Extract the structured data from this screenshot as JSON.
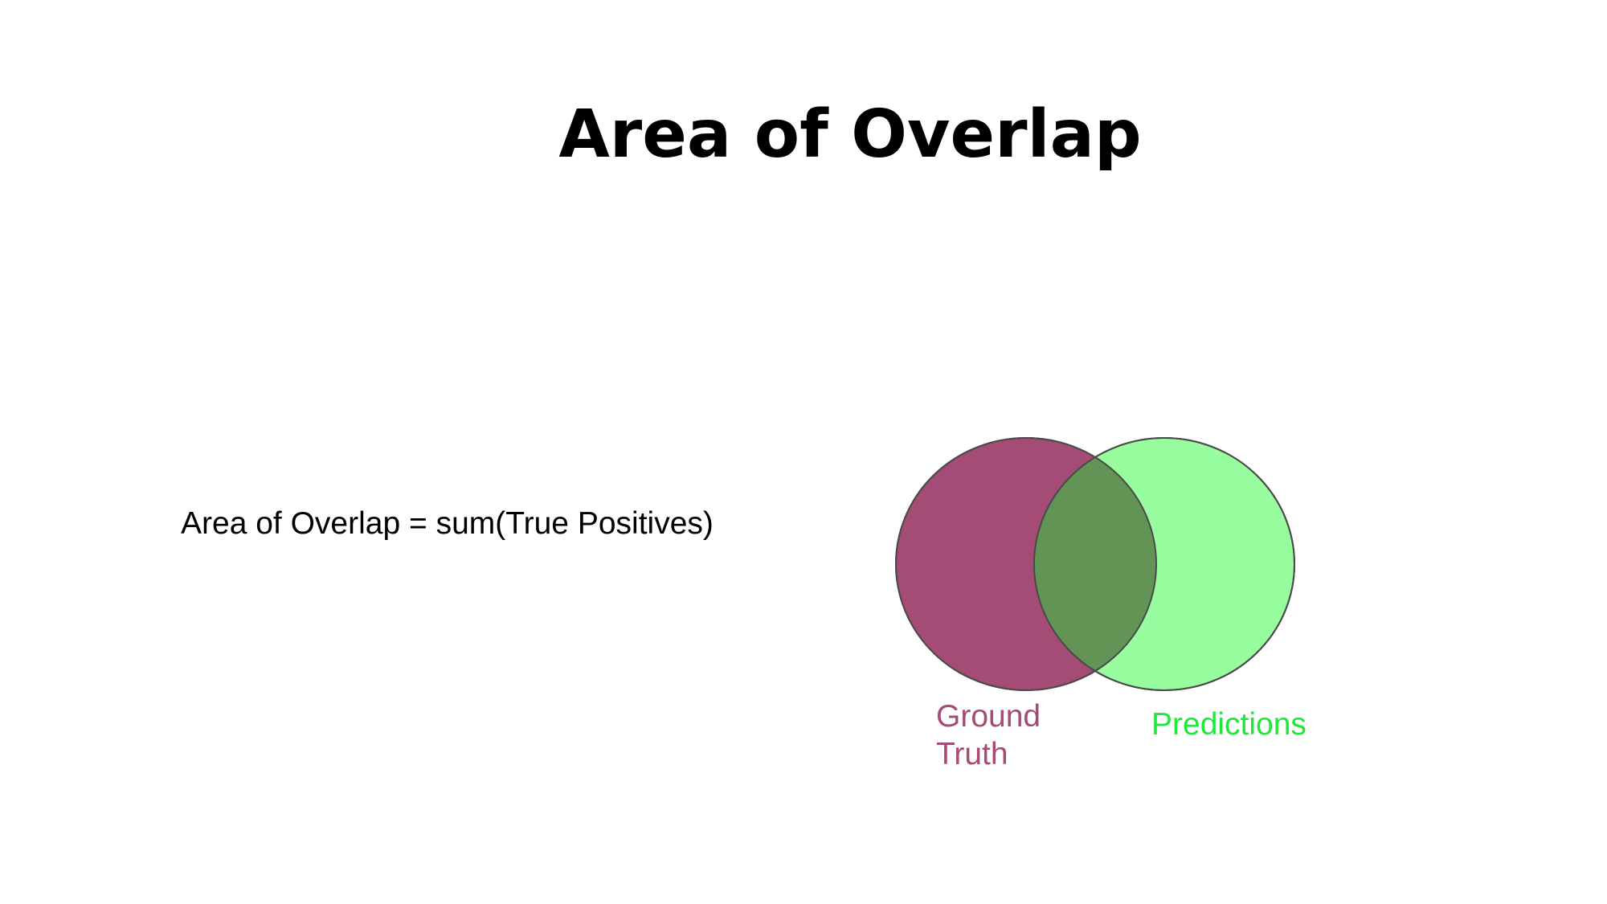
{
  "slide": {
    "title": "Area of Overlap",
    "formula": "Area of Overlap = sum(True Positives)"
  },
  "venn": {
    "sets": [
      {
        "label": "Ground Truth",
        "color": "#a44c76"
      },
      {
        "label": "Predictions",
        "color": "#98fd9e"
      }
    ],
    "overlap_color": "#619455",
    "prediction_label_color": "#1fe83a",
    "outline_color": "#4a4a4a"
  }
}
